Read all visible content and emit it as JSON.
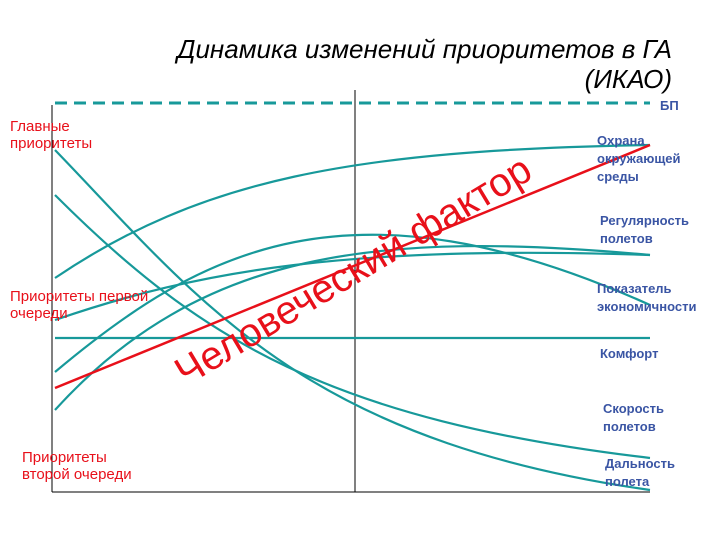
{
  "title": {
    "lines": [
      "Динамика изменений приоритетов в ГА",
      "(ИКАО)"
    ]
  },
  "left_labels": [
    [
      "Главные",
      "приоритеты"
    ],
    [
      "Приоритеты первой",
      "очереди"
    ],
    [
      "Приоритеты",
      "второй очереди"
    ]
  ],
  "right_labels": [
    [
      "БП"
    ],
    [
      "Охрана",
      "окружающей",
      "среды"
    ],
    [
      "Регулярность",
      "полетов"
    ],
    [
      "Показатель",
      "экономичности"
    ],
    [
      "Комфорт"
    ],
    [
      "Скорость",
      "полетов"
    ],
    [
      "Дальность",
      "полета"
    ]
  ],
  "diagonal_label": "Человеческий фактор"
}
